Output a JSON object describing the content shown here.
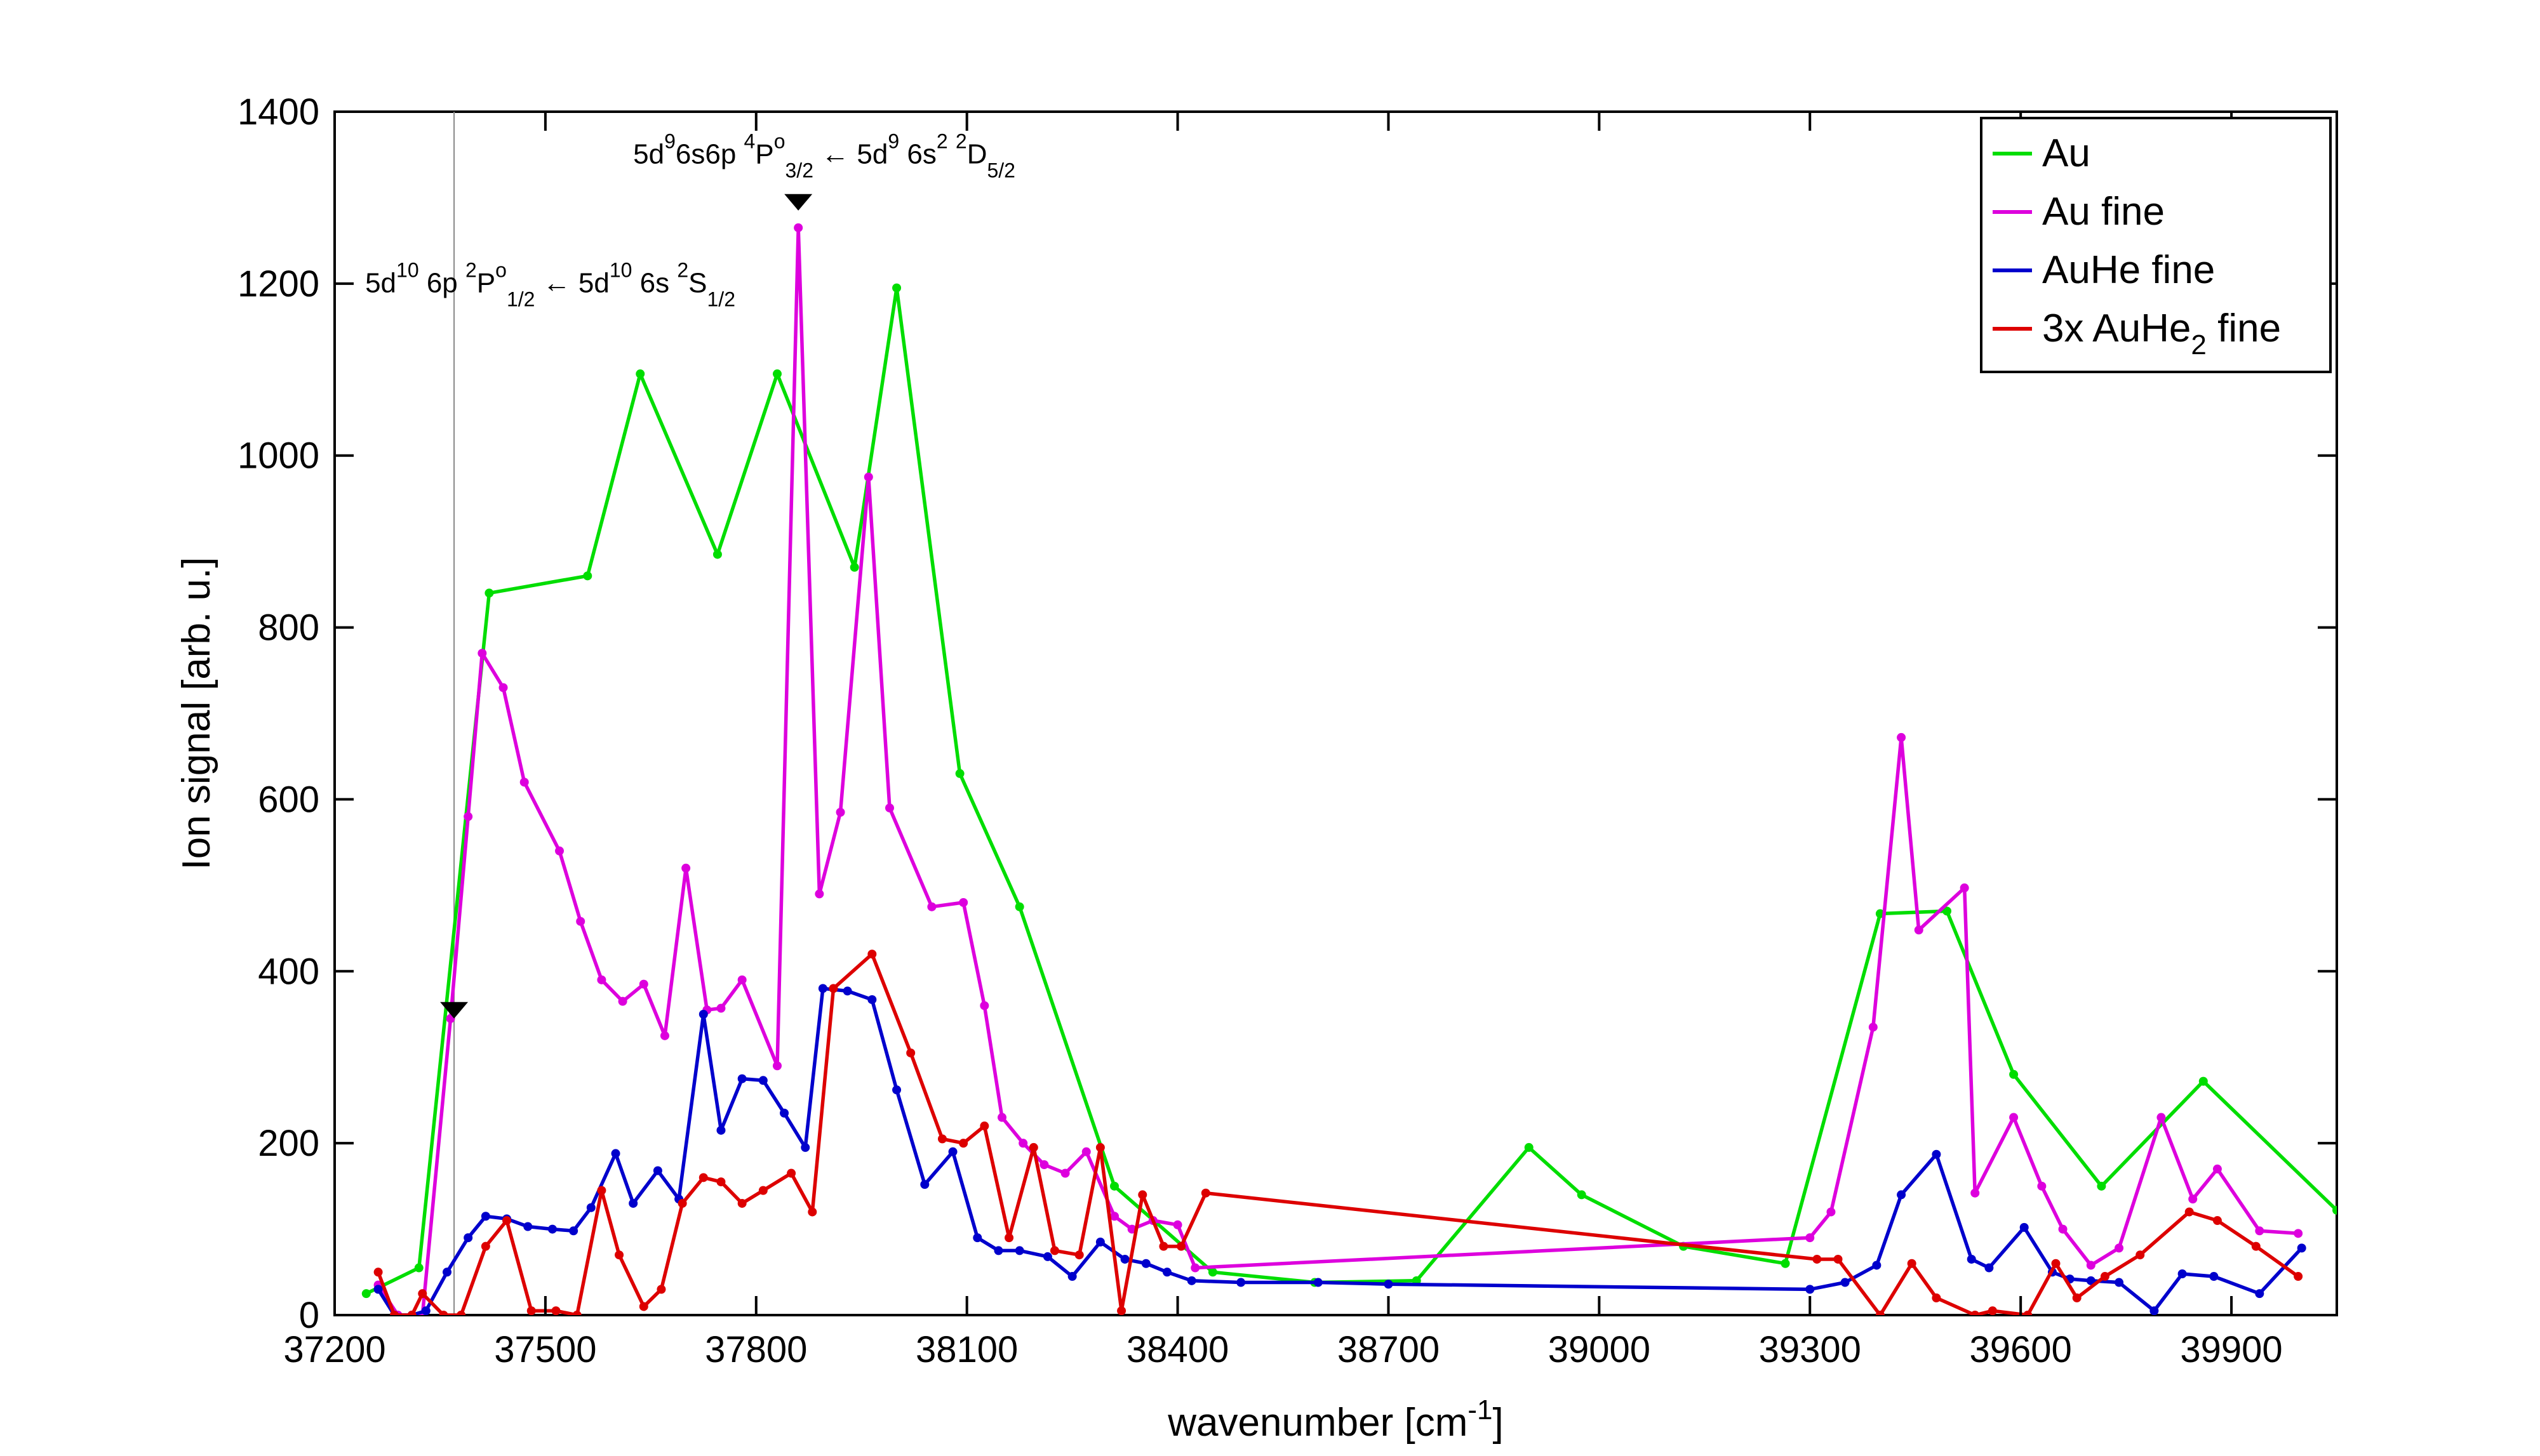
{
  "chart_data": {
    "type": "line",
    "xlabel": "wavenumber [cm",
    "xlabel_sup": "-1",
    "xlabel_end": "]",
    "ylabel": "Ion signal [arb. u.]",
    "xlim": [
      37200,
      40050
    ],
    "ylim": [
      0,
      1400
    ],
    "xticks": [
      37200,
      37500,
      37800,
      38100,
      38400,
      38700,
      39000,
      39300,
      39600,
      39900
    ],
    "yticks": [
      0,
      200,
      400,
      600,
      800,
      1000,
      1200,
      1400
    ],
    "grid": false,
    "legend_position": "top-right",
    "legend": [
      {
        "base": "Au",
        "sub": "",
        "end": "",
        "color": "#00dd00"
      },
      {
        "base": "Au fine",
        "sub": "",
        "end": "",
        "color": "#dd00dd"
      },
      {
        "base": "AuHe fine",
        "sub": "",
        "end": "",
        "color": "#0000cc"
      },
      {
        "base": "3x AuHe",
        "sub": "2",
        "end": " fine",
        "color": "#dd0000"
      }
    ],
    "series": [
      {
        "name": "Au",
        "color": "#00dd00",
        "x": [
          37245,
          37320,
          37420,
          37560,
          37635,
          37745,
          37830,
          37940,
          38000,
          38090,
          38175,
          38310,
          38450,
          38595,
          38740,
          38900,
          38975,
          39120,
          39265,
          39400,
          39495,
          39590,
          39715,
          39860,
          40050
        ],
        "y": [
          25,
          55,
          840,
          860,
          1095,
          885,
          1095,
          870,
          1195,
          630,
          475,
          150,
          50,
          38,
          40,
          195,
          140,
          80,
          60,
          467,
          470,
          280,
          150,
          272,
          122
        ]
      },
      {
        "name": "Au fine",
        "color": "#dd00dd",
        "x": [
          37262,
          37290,
          37325,
          37365,
          37390,
          37410,
          37440,
          37470,
          37520,
          37550,
          37580,
          37610,
          37640,
          37670,
          37700,
          37730,
          37750,
          37780,
          37830,
          37860,
          37890,
          37920,
          37960,
          37990,
          38050,
          38095,
          38125,
          38150,
          38180,
          38210,
          38240,
          38270,
          38310,
          38335,
          38365,
          38400,
          38425,
          39300,
          39330,
          39390,
          39430,
          39455,
          39520,
          39535,
          39590,
          39630,
          39660,
          39700,
          39740,
          39800,
          39845,
          39880,
          39940,
          39995
        ],
        "y": [
          35,
          0,
          0,
          345,
          580,
          770,
          730,
          620,
          540,
          458,
          390,
          365,
          385,
          325,
          520,
          355,
          357,
          390,
          290,
          1265,
          490,
          585,
          975,
          590,
          475,
          480,
          360,
          230,
          200,
          175,
          165,
          190,
          115,
          100,
          110,
          105,
          55,
          90,
          120,
          335,
          672,
          448,
          497,
          142,
          230,
          150,
          100,
          58,
          78,
          230,
          135,
          170,
          98,
          95
        ]
      },
      {
        "name": "AuHe fine",
        "color": "#0000cc",
        "x": [
          37262,
          37285,
          37310,
          37330,
          37360,
          37390,
          37415,
          37445,
          37475,
          37510,
          37540,
          37565,
          37600,
          37625,
          37660,
          37690,
          37725,
          37750,
          37780,
          37810,
          37840,
          37870,
          37895,
          37930,
          37965,
          38000,
          38040,
          38080,
          38115,
          38145,
          38175,
          38215,
          38250,
          38290,
          38325,
          38355,
          38385,
          38420,
          38490,
          38600,
          38700,
          39300,
          39350,
          39395,
          39430,
          39480,
          39530,
          39555,
          39605,
          39645,
          39670,
          39700,
          39740,
          39790,
          39830,
          39875,
          39940,
          40000
        ],
        "y": [
          30,
          0,
          0,
          5,
          50,
          90,
          115,
          112,
          103,
          100,
          98,
          125,
          188,
          130,
          168,
          135,
          350,
          215,
          275,
          273,
          235,
          195,
          380,
          377,
          367,
          262,
          152,
          190,
          90,
          75,
          75,
          68,
          45,
          85,
          65,
          60,
          50,
          40,
          38,
          38,
          36,
          30,
          38,
          58,
          140,
          187,
          65,
          55,
          102,
          50,
          42,
          40,
          38,
          5,
          48,
          45,
          25,
          78
        ]
      },
      {
        "name": "3x AuHe2 fine",
        "color": "#dd0000",
        "x": [
          37262,
          37285,
          37310,
          37325,
          37355,
          37380,
          37415,
          37445,
          37480,
          37515,
          37545,
          37580,
          37605,
          37640,
          37665,
          37695,
          37725,
          37750,
          37780,
          37810,
          37850,
          37880,
          37910,
          37965,
          38020,
          38065,
          38095,
          38125,
          38160,
          38195,
          38225,
          38260,
          38290,
          38320,
          38350,
          38380,
          38405,
          38440,
          39310,
          39340,
          39400,
          39445,
          39480,
          39535,
          39560,
          39610,
          39650,
          39680,
          39720,
          39770,
          39840,
          39880,
          39935,
          39995
        ],
        "y": [
          50,
          0,
          0,
          25,
          0,
          0,
          80,
          110,
          5,
          5,
          0,
          145,
          70,
          10,
          30,
          130,
          160,
          155,
          130,
          145,
          165,
          120,
          380,
          420,
          305,
          205,
          200,
          220,
          90,
          195,
          75,
          70,
          195,
          5,
          140,
          80,
          80,
          142,
          65,
          65,
          0,
          60,
          20,
          0,
          5,
          0,
          60,
          20,
          45,
          70,
          120,
          110,
          80,
          45
        ]
      }
    ],
    "annotations": [
      {
        "x": 37370,
        "y": 345,
        "parts": [
          {
            "t": "5d",
            "s": "n"
          },
          {
            "t": "10",
            "s": "sup"
          },
          {
            "t": " 6p ",
            "s": "n"
          },
          {
            "t": "2",
            "s": "sup"
          },
          {
            "t": "P",
            "s": "n"
          },
          {
            "t": "o",
            "s": "sup"
          },
          {
            "t": "1/2",
            "s": "sub"
          },
          {
            "t": " ← 5d",
            "s": "n"
          },
          {
            "t": "10",
            "s": "sup"
          },
          {
            "t": " 6s ",
            "s": "n"
          },
          {
            "t": "2",
            "s": "sup"
          },
          {
            "t": "S",
            "s": "n"
          },
          {
            "t": "1/2",
            "s": "sub"
          }
        ]
      },
      {
        "x": 37860,
        "y": 1285,
        "parts": [
          {
            "t": "5d",
            "s": "n"
          },
          {
            "t": "9",
            "s": "sup"
          },
          {
            "t": "6s6p ",
            "s": "n"
          },
          {
            "t": "4",
            "s": "sup"
          },
          {
            "t": "P",
            "s": "n"
          },
          {
            "t": "o",
            "s": "sup"
          },
          {
            "t": "3/2",
            "s": "sub"
          },
          {
            "t": " ← 5d",
            "s": "n"
          },
          {
            "t": "9",
            "s": "sup"
          },
          {
            "t": " 6s",
            "s": "n"
          },
          {
            "t": "2",
            "s": "sup"
          },
          {
            "t": " ",
            "s": "n"
          },
          {
            "t": "2",
            "s": "sup"
          },
          {
            "t": "D",
            "s": "n"
          },
          {
            "t": "5/2",
            "s": "sub"
          }
        ]
      }
    ]
  }
}
